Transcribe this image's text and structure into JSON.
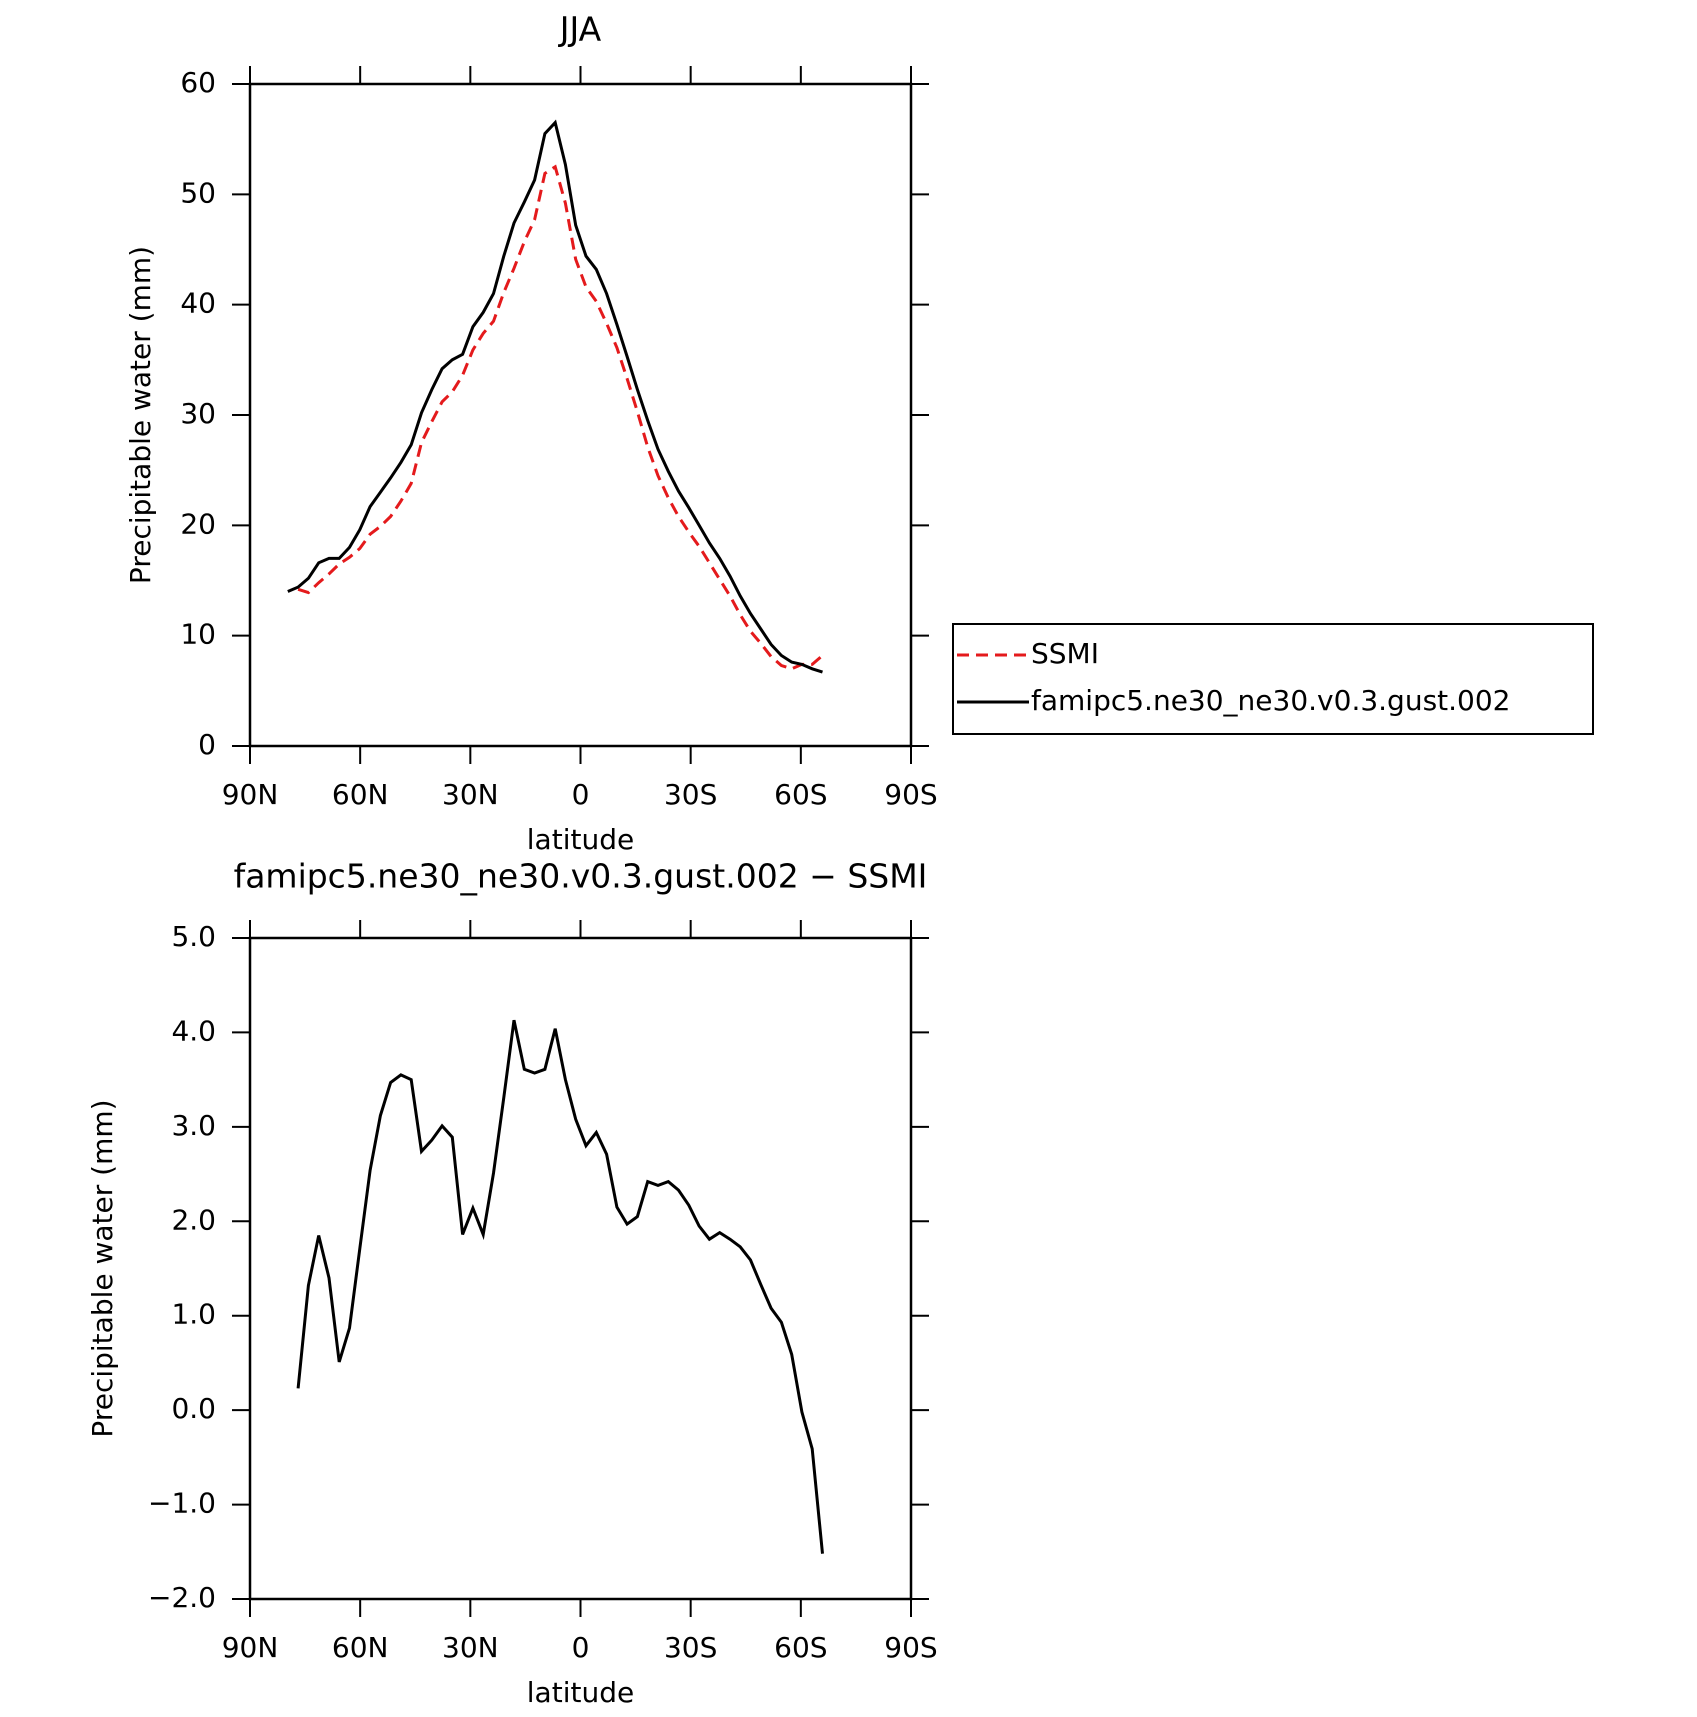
{
  "chart_data": [
    {
      "type": "line",
      "title": "JJA",
      "x_label": "latitude",
      "y_label": "Precipitable water (mm)",
      "x": [
        79.7,
        76.9,
        74.1,
        71.3,
        68.5,
        65.7,
        62.9,
        60.1,
        57.3,
        54.5,
        51.7,
        48.9,
        46.1,
        43.3,
        40.5,
        37.7,
        34.9,
        32.1,
        29.3,
        26.5,
        23.7,
        20.9,
        18.1,
        15.3,
        12.5,
        9.7,
        6.9,
        4.1,
        1.3,
        -1.5,
        -4.3,
        -7.1,
        -9.9,
        -12.7,
        -15.5,
        -18.3,
        -21.1,
        -23.9,
        -26.7,
        -29.5,
        -32.3,
        -35.1,
        -37.9,
        -40.7,
        -43.5,
        -46.3,
        -49.1,
        -51.9,
        -54.7,
        -57.5,
        -60.3,
        -63.1,
        -65.9
      ],
      "series": [
        {
          "name": "SSMI",
          "color": "#e41a1c",
          "dash": true,
          "values": [
            null,
            14.2,
            13.9,
            14.8,
            15.6,
            16.5,
            17.1,
            17.9,
            19.2,
            19.9,
            20.8,
            22.2,
            23.8,
            27.5,
            29.4,
            31.2,
            32.1,
            33.6,
            35.9,
            37.4,
            38.5,
            41.1,
            43.3,
            45.7,
            47.7,
            51.9,
            52.5,
            49.2,
            44.1,
            41.6,
            40.3,
            38.3,
            36.1,
            33.3,
            30.3,
            27.1,
            24.5,
            22.5,
            20.8,
            19.4,
            18.1,
            16.6,
            15.1,
            13.6,
            11.9,
            10.4,
            9.3,
            8.1,
            7.3,
            7.0,
            7.4,
            7.4,
            8.2
          ]
        },
        {
          "name": "famipc5.ne30_ne30.v0.3.gust.002",
          "color": "#000000",
          "dash": false,
          "values": [
            14.0,
            14.4,
            15.2,
            16.6,
            17.0,
            17.0,
            18.0,
            19.6,
            21.7,
            23.0,
            24.3,
            25.7,
            27.3,
            30.2,
            32.3,
            34.2,
            35.0,
            35.5,
            38.0,
            39.3,
            41.0,
            44.4,
            47.4,
            49.3,
            51.3,
            55.5,
            56.5,
            52.7,
            47.2,
            44.4,
            43.2,
            41.0,
            38.2,
            35.3,
            32.3,
            29.5,
            26.9,
            24.9,
            23.1,
            21.6,
            20.0,
            18.4,
            17.0,
            15.4,
            13.6,
            12.0,
            10.6,
            9.2,
            8.2,
            7.6,
            7.4,
            7.0,
            6.7
          ]
        }
      ],
      "xlim": [
        90,
        -90
      ],
      "xticks": [
        {
          "value": 90,
          "label": "90N"
        },
        {
          "value": 60,
          "label": "60N"
        },
        {
          "value": 30,
          "label": "30N"
        },
        0,
        {
          "value": -30,
          "label": "30S"
        },
        {
          "value": -60,
          "label": "60S"
        },
        {
          "value": -90,
          "label": "90S"
        }
      ],
      "ylim": [
        0,
        60
      ],
      "yticks": [
        0,
        10,
        20,
        30,
        40,
        50,
        60
      ],
      "legend": "right"
    },
    {
      "type": "line",
      "title": "famipc5.ne30_ne30.v0.3.gust.002 − SSMI",
      "x_label": "latitude",
      "y_label": "Precipitable water (mm)",
      "x": [
        76.9,
        74.1,
        71.3,
        68.5,
        65.7,
        62.9,
        60.1,
        57.3,
        54.5,
        51.7,
        48.9,
        46.1,
        43.3,
        40.5,
        37.7,
        34.9,
        32.1,
        29.3,
        26.5,
        23.7,
        20.9,
        18.1,
        15.3,
        12.5,
        9.7,
        6.9,
        4.1,
        1.3,
        -1.5,
        -4.3,
        -7.1,
        -9.9,
        -12.7,
        -15.5,
        -18.3,
        -21.1,
        -23.9,
        -26.7,
        -29.5,
        -32.3,
        -35.1,
        -37.9,
        -40.7,
        -43.5,
        -46.3,
        -49.1,
        -51.9,
        -54.7,
        -57.5,
        -60.3,
        -63.1,
        -65.9
      ],
      "series": [
        {
          "color": "#000000",
          "dash": false,
          "values": [
            0.23,
            1.32,
            1.85,
            1.4,
            0.51,
            0.87,
            1.71,
            2.54,
            3.12,
            3.47,
            3.55,
            3.5,
            2.74,
            2.86,
            3.01,
            2.89,
            1.86,
            2.14,
            1.86,
            2.51,
            3.31,
            4.13,
            3.61,
            3.57,
            3.61,
            4.04,
            3.5,
            3.08,
            2.8,
            2.94,
            2.71,
            2.15,
            1.97,
            2.05,
            2.42,
            2.38,
            2.42,
            2.33,
            2.17,
            1.95,
            1.81,
            1.88,
            1.81,
            1.73,
            1.59,
            1.33,
            1.08,
            0.93,
            0.59,
            -0.02,
            -0.41,
            -1.52
          ]
        }
      ],
      "xlim": [
        90,
        -90
      ],
      "xticks": [
        {
          "value": 90,
          "label": "90N"
        },
        {
          "value": 60,
          "label": "60N"
        },
        {
          "value": 30,
          "label": "30N"
        },
        0,
        {
          "value": -30,
          "label": "30S"
        },
        {
          "value": -60,
          "label": "60S"
        },
        {
          "value": -90,
          "label": "90S"
        }
      ],
      "ylim": [
        -2,
        5
      ],
      "yticks": [
        {
          "value": -2,
          "label": "−2.0"
        },
        {
          "value": -1,
          "label": "−1.0"
        },
        {
          "value": 0,
          "label": "0.0"
        },
        {
          "value": 1,
          "label": "1.0"
        },
        {
          "value": 2,
          "label": "2.0"
        },
        {
          "value": 3,
          "label": "3.0"
        },
        {
          "value": 4,
          "label": "4.0"
        },
        {
          "value": 5,
          "label": "5.0"
        }
      ]
    }
  ]
}
